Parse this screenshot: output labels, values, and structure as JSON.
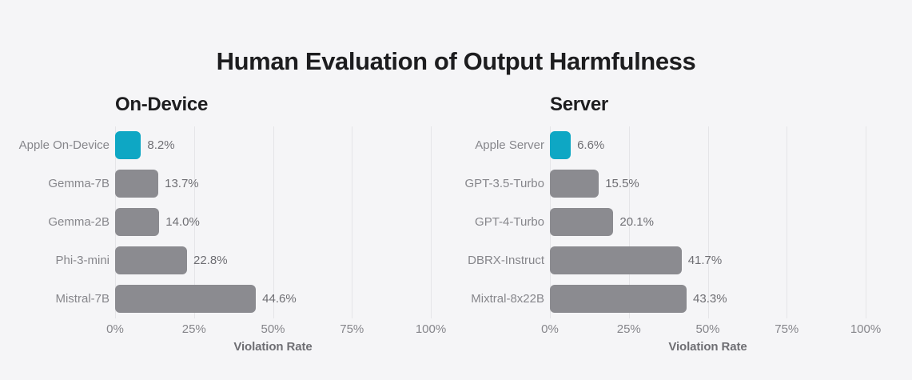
{
  "page": {
    "title": "Human Evaluation of Output Harmfulness",
    "background_color": "#f5f5f7"
  },
  "colors": {
    "highlight_bar": "#0ea7c4",
    "default_bar": "#8b8b90",
    "gridline": "#e5e5e8",
    "label_text": "#86868b",
    "value_text": "#6e6e73",
    "title_text": "#1d1d1f"
  },
  "chart_data": [
    {
      "type": "bar",
      "orientation": "horizontal",
      "title": "On-Device",
      "categories": [
        "Apple On-Device",
        "Gemma-7B",
        "Gemma-2B",
        "Phi-3-mini",
        "Mistral-7B"
      ],
      "values": [
        8.2,
        13.7,
        14.0,
        22.8,
        44.6
      ],
      "value_labels": [
        "8.2%",
        "13.7%",
        "14.0%",
        "22.8%",
        "44.6%"
      ],
      "highlight_index": 0,
      "xlabel": "Violation Rate",
      "x_ticks": [
        "0%",
        "25%",
        "50%",
        "75%",
        "100%"
      ],
      "x_tick_values": [
        0,
        25,
        50,
        75,
        100
      ],
      "xlim": [
        0,
        100
      ],
      "grid": true,
      "legend": "none"
    },
    {
      "type": "bar",
      "orientation": "horizontal",
      "title": "Server",
      "categories": [
        "Apple Server",
        "GPT-3.5-Turbo",
        "GPT-4-Turbo",
        "DBRX-Instruct",
        "Mixtral-8x22B"
      ],
      "values": [
        6.6,
        15.5,
        20.1,
        41.7,
        43.3
      ],
      "value_labels": [
        "6.6%",
        "15.5%",
        "20.1%",
        "41.7%",
        "43.3%"
      ],
      "highlight_index": 0,
      "xlabel": "Violation Rate",
      "x_ticks": [
        "0%",
        "25%",
        "50%",
        "75%",
        "100%"
      ],
      "x_tick_values": [
        0,
        25,
        50,
        75,
        100
      ],
      "xlim": [
        0,
        100
      ],
      "grid": true,
      "legend": "none"
    }
  ]
}
